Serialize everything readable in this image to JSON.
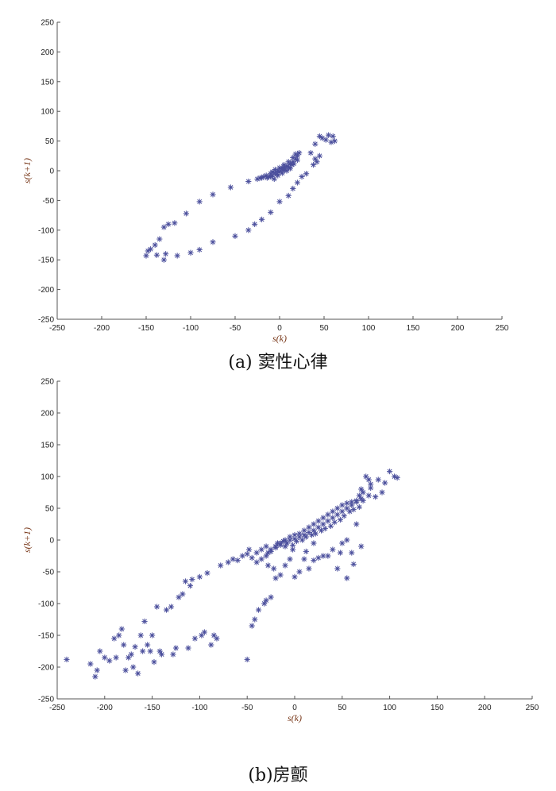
{
  "captions": [
    "(a)  窦性心律",
    "(b)房颤"
  ],
  "colors": {
    "marker": "#4b4f9c",
    "axis_label": "#7a3a1c"
  },
  "chart_data": [
    {
      "type": "scatter",
      "caption": "(a)  窦性心律",
      "xlabel": "s(k)",
      "ylabel": "s(k+1)",
      "xlim": [
        -250,
        250
      ],
      "ylim": [
        -250,
        250
      ],
      "xticks": [
        -250,
        -200,
        -150,
        -100,
        -50,
        0,
        50,
        100,
        150,
        200,
        250
      ],
      "yticks": [
        250,
        200,
        150,
        100,
        50,
        0,
        -50,
        -100,
        -150,
        -200,
        -250
      ],
      "grid": false,
      "marker": "asterisk",
      "points": [
        [
          -150,
          -143
        ],
        [
          -145,
          -132
        ],
        [
          -140,
          -125
        ],
        [
          -135,
          -115
        ],
        [
          -130,
          -95
        ],
        [
          -125,
          -90
        ],
        [
          -118,
          -88
        ],
        [
          -105,
          -72
        ],
        [
          -90,
          -52
        ],
        [
          -75,
          -40
        ],
        [
          -55,
          -28
        ],
        [
          -35,
          -18
        ],
        [
          -25,
          -14
        ],
        [
          -20,
          -12
        ],
        [
          -15,
          -8
        ],
        [
          -12,
          -10
        ],
        [
          -10,
          -5
        ],
        [
          -8,
          -8
        ],
        [
          -5,
          -3
        ],
        [
          -3,
          -6
        ],
        [
          -2,
          0
        ],
        [
          0,
          -2
        ],
        [
          2,
          3
        ],
        [
          4,
          1
        ],
        [
          5,
          6
        ],
        [
          6,
          3
        ],
        [
          8,
          8
        ],
        [
          10,
          6
        ],
        [
          12,
          12
        ],
        [
          14,
          10
        ],
        [
          15,
          15
        ],
        [
          16,
          12
        ],
        [
          18,
          20
        ],
        [
          20,
          18
        ],
        [
          20,
          25
        ],
        [
          22,
          30
        ],
        [
          18,
          28
        ],
        [
          15,
          22
        ],
        [
          10,
          15
        ],
        [
          5,
          10
        ],
        [
          0,
          5
        ],
        [
          -5,
          2
        ],
        [
          -8,
          -2
        ],
        [
          -10,
          -10
        ],
        [
          -6,
          -14
        ],
        [
          -2,
          -8
        ],
        [
          3,
          -4
        ],
        [
          8,
          0
        ],
        [
          12,
          4
        ],
        [
          -14,
          -12
        ],
        [
          -18,
          -10
        ],
        [
          -22,
          -12
        ],
        [
          25,
          -10
        ],
        [
          20,
          -20
        ],
        [
          15,
          -30
        ],
        [
          10,
          -42
        ],
        [
          0,
          -52
        ],
        [
          -10,
          -70
        ],
        [
          -20,
          -82
        ],
        [
          -28,
          -90
        ],
        [
          -35,
          -100
        ],
        [
          -50,
          -110
        ],
        [
          -75,
          -120
        ],
        [
          -90,
          -133
        ],
        [
          -100,
          -138
        ],
        [
          -115,
          -143
        ],
        [
          -130,
          -150
        ],
        [
          -148,
          -135
        ],
        [
          -138,
          -142
        ],
        [
          -128,
          -140
        ],
        [
          30,
          -5
        ],
        [
          40,
          20
        ],
        [
          42,
          15
        ],
        [
          45,
          25
        ],
        [
          40,
          45
        ],
        [
          48,
          55
        ],
        [
          55,
          60
        ],
        [
          60,
          58
        ],
        [
          58,
          48
        ],
        [
          62,
          50
        ],
        [
          52,
          52
        ],
        [
          45,
          58
        ],
        [
          35,
          30
        ],
        [
          38,
          10
        ]
      ]
    },
    {
      "type": "scatter",
      "caption": "(b)房颤",
      "xlabel": "s(k)",
      "ylabel": "s(k+1)",
      "xlim": [
        -250,
        250
      ],
      "ylim": [
        -250,
        250
      ],
      "xticks": [
        -250,
        -200,
        -150,
        -100,
        -50,
        0,
        50,
        100,
        150,
        200,
        250
      ],
      "yticks": [
        250,
        200,
        150,
        100,
        50,
        0,
        -50,
        -100,
        -150,
        -200,
        -250
      ],
      "grid": false,
      "marker": "asterisk",
      "points": [
        [
          -240,
          -188
        ],
        [
          -215,
          -195
        ],
        [
          -210,
          -215
        ],
        [
          -208,
          -205
        ],
        [
          -205,
          -175
        ],
        [
          -200,
          -185
        ],
        [
          -195,
          -190
        ],
        [
          -190,
          -155
        ],
        [
          -188,
          -185
        ],
        [
          -185,
          -150
        ],
        [
          -182,
          -140
        ],
        [
          -180,
          -165
        ],
        [
          -178,
          -205
        ],
        [
          -175,
          -185
        ],
        [
          -172,
          -180
        ],
        [
          -170,
          -200
        ],
        [
          -168,
          -168
        ],
        [
          -165,
          -210
        ],
        [
          -162,
          -150
        ],
        [
          -160,
          -175
        ],
        [
          -158,
          -128
        ],
        [
          -155,
          -165
        ],
        [
          -152,
          -175
        ],
        [
          -150,
          -150
        ],
        [
          -148,
          -192
        ],
        [
          -145,
          -105
        ],
        [
          -142,
          -175
        ],
        [
          -140,
          -180
        ],
        [
          -135,
          -110
        ],
        [
          -130,
          -105
        ],
        [
          -128,
          -180
        ],
        [
          -125,
          -170
        ],
        [
          -122,
          -90
        ],
        [
          -118,
          -85
        ],
        [
          -115,
          -65
        ],
        [
          -112,
          -170
        ],
        [
          -110,
          -72
        ],
        [
          -108,
          -62
        ],
        [
          -105,
          -155
        ],
        [
          -100,
          -58
        ],
        [
          -98,
          -150
        ],
        [
          -95,
          -145
        ],
        [
          -92,
          -52
        ],
        [
          -88,
          -165
        ],
        [
          -85,
          -150
        ],
        [
          -82,
          -155
        ],
        [
          -78,
          -40
        ],
        [
          -70,
          -35
        ],
        [
          -65,
          -30
        ],
        [
          -60,
          -32
        ],
        [
          -55,
          -25
        ],
        [
          -50,
          -22
        ],
        [
          -45,
          -28
        ],
        [
          -40,
          -20
        ],
        [
          -35,
          -15
        ],
        [
          -30,
          -10
        ],
        [
          -25,
          -18
        ],
        [
          -20,
          -12
        ],
        [
          -18,
          -5
        ],
        [
          -15,
          -8
        ],
        [
          -12,
          -2
        ],
        [
          -10,
          -10
        ],
        [
          -8,
          -5
        ],
        [
          -5,
          0
        ],
        [
          -2,
          -8
        ],
        [
          0,
          2
        ],
        [
          2,
          -2
        ],
        [
          5,
          5
        ],
        [
          8,
          0
        ],
        [
          10,
          8
        ],
        [
          12,
          5
        ],
        [
          15,
          12
        ],
        [
          18,
          8
        ],
        [
          20,
          15
        ],
        [
          22,
          10
        ],
        [
          25,
          20
        ],
        [
          28,
          15
        ],
        [
          30,
          25
        ],
        [
          32,
          18
        ],
        [
          35,
          30
        ],
        [
          38,
          22
        ],
        [
          40,
          35
        ],
        [
          42,
          28
        ],
        [
          45,
          40
        ],
        [
          48,
          32
        ],
        [
          50,
          45
        ],
        [
          52,
          38
        ],
        [
          55,
          50
        ],
        [
          58,
          45
        ],
        [
          60,
          55
        ],
        [
          62,
          48
        ],
        [
          65,
          60
        ],
        [
          68,
          52
        ],
        [
          70,
          65
        ],
        [
          72,
          62
        ],
        [
          68,
          70
        ],
        [
          65,
          62
        ],
        [
          60,
          60
        ],
        [
          55,
          58
        ],
        [
          50,
          55
        ],
        [
          45,
          50
        ],
        [
          40,
          45
        ],
        [
          35,
          40
        ],
        [
          30,
          35
        ],
        [
          25,
          30
        ],
        [
          20,
          25
        ],
        [
          15,
          20
        ],
        [
          10,
          15
        ],
        [
          5,
          10
        ],
        [
          0,
          8
        ],
        [
          -5,
          5
        ],
        [
          -10,
          0
        ],
        [
          -15,
          -5
        ],
        [
          -20,
          -10
        ],
        [
          -25,
          -15
        ],
        [
          -28,
          -20
        ],
        [
          -30,
          -25
        ],
        [
          -35,
          -30
        ],
        [
          -40,
          -35
        ],
        [
          -48,
          -15
        ],
        [
          -50,
          -188
        ],
        [
          -45,
          -135
        ],
        [
          -42,
          -125
        ],
        [
          -38,
          -110
        ],
        [
          -32,
          -100
        ],
        [
          -30,
          -95
        ],
        [
          -25,
          -90
        ],
        [
          -20,
          -60
        ],
        [
          -15,
          -55
        ],
        [
          -10,
          -40
        ],
        [
          -5,
          -30
        ],
        [
          0,
          -58
        ],
        [
          5,
          -50
        ],
        [
          10,
          -30
        ],
        [
          15,
          -45
        ],
        [
          20,
          -32
        ],
        [
          25,
          -28
        ],
        [
          30,
          -25
        ],
        [
          35,
          -25
        ],
        [
          40,
          -15
        ],
        [
          45,
          -45
        ],
        [
          50,
          -5
        ],
        [
          55,
          0
        ],
        [
          60,
          -20
        ],
        [
          65,
          25
        ],
        [
          70,
          80
        ],
        [
          72,
          75
        ],
        [
          75,
          100
        ],
        [
          78,
          95
        ],
        [
          80,
          82
        ],
        [
          85,
          68
        ],
        [
          88,
          95
        ],
        [
          92,
          75
        ],
        [
          95,
          90
        ],
        [
          100,
          108
        ],
        [
          105,
          100
        ],
        [
          108,
          98
        ],
        [
          80,
          88
        ],
        [
          78,
          70
        ],
        [
          70,
          -10
        ],
        [
          62,
          -38
        ],
        [
          55,
          -60
        ],
        [
          48,
          -20
        ],
        [
          20,
          -5
        ],
        [
          12,
          -18
        ],
        [
          -2,
          -15
        ],
        [
          -22,
          -45
        ],
        [
          -28,
          -40
        ]
      ]
    }
  ]
}
